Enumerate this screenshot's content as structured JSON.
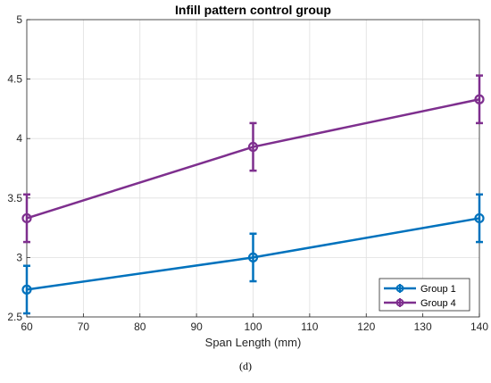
{
  "chart_data": {
    "type": "line",
    "title": "Infill pattern control group",
    "xlabel": "Span Length (mm)",
    "ylabel": "",
    "xlim": [
      60,
      140
    ],
    "ylim": [
      2.5,
      5
    ],
    "xticks": [
      "60",
      "70",
      "80",
      "90",
      "100",
      "110",
      "120",
      "130",
      "140"
    ],
    "yticks": [
      "2.5",
      "3",
      "3.5",
      "4",
      "4.5",
      "5"
    ],
    "x": [
      60,
      100,
      140
    ],
    "series": [
      {
        "name": "Group 1",
        "color": "#0072BD",
        "values": [
          2.73,
          3.0,
          3.33
        ],
        "error": [
          0.2,
          0.2,
          0.2
        ]
      },
      {
        "name": "Group 4",
        "color": "#7E2F8E",
        "values": [
          3.33,
          3.93,
          4.33
        ],
        "error": [
          0.2,
          0.2,
          0.2
        ]
      }
    ],
    "grid": true,
    "legend_position": "bottom-right"
  },
  "caption": "(d)"
}
